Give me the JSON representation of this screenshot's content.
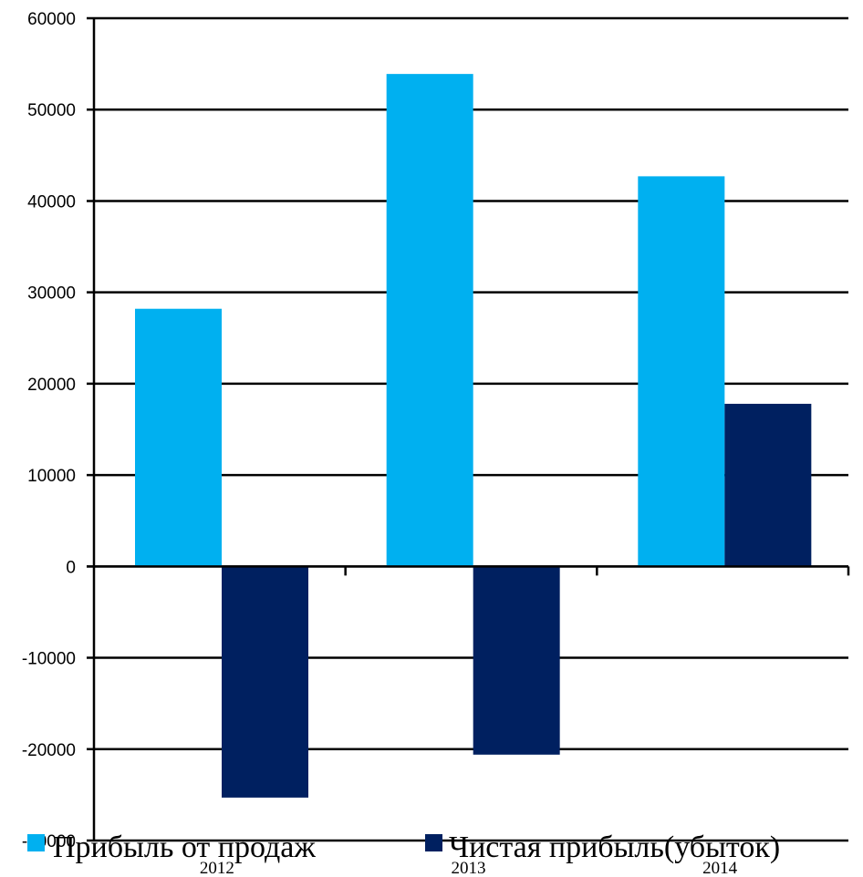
{
  "chart_data": {
    "type": "bar",
    "categories": [
      "2012",
      "2013",
      "2014"
    ],
    "series": [
      {
        "name": "Прибыль от продаж",
        "values": [
          28200,
          53900,
          42700
        ],
        "color": "#00b0f0"
      },
      {
        "name": "Чистая прибыль(убыток)",
        "values": [
          -25300,
          -20600,
          17800
        ],
        "color": "#002060"
      }
    ],
    "ylim": [
      -30000,
      60000
    ],
    "yticks": [
      60000,
      50000,
      40000,
      30000,
      20000,
      10000,
      0,
      -10000,
      -20000,
      -30000
    ],
    "ytick_labels": [
      "60000",
      "50000",
      "40000",
      "30000",
      "20000",
      "10000",
      "0",
      "-10000",
      "-20000",
      "-30000"
    ],
    "grid": true,
    "legend": "bottom",
    "title": "",
    "xlabel": "",
    "ylabel": ""
  }
}
